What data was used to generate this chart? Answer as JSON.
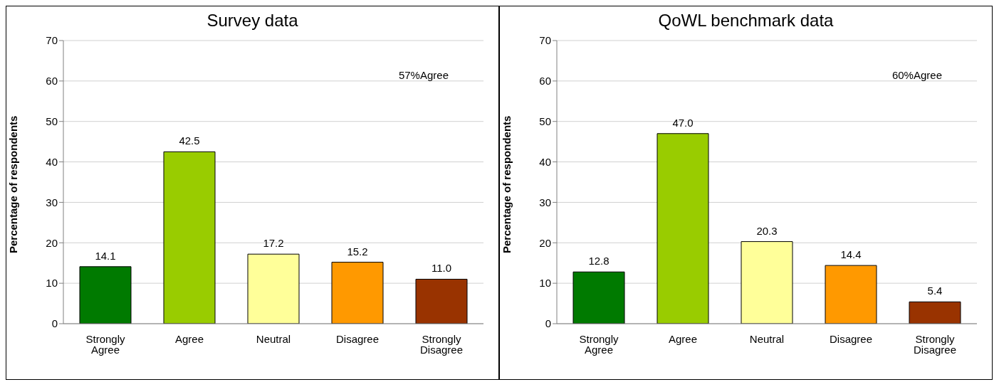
{
  "chart_data": [
    {
      "type": "bar",
      "title": "Survey data",
      "ylabel": "Percentage of respondents",
      "categories": [
        "Strongly Agree",
        "Agree",
        "Neutral",
        "Disagree",
        "Strongly Disagree"
      ],
      "values": [
        14.1,
        42.5,
        17.2,
        15.2,
        11.0
      ],
      "value_labels": [
        "14.1",
        "42.5",
        "17.2",
        "15.2",
        "11.0"
      ],
      "colors": [
        "#007a00",
        "#99cc00",
        "#ffff99",
        "#ff9900",
        "#993300"
      ],
      "ylim": [
        0,
        70
      ],
      "yticks": [
        0,
        10,
        20,
        30,
        40,
        50,
        60,
        70
      ],
      "grid": "y",
      "legend": false,
      "annotations": [
        "57%Agree"
      ]
    },
    {
      "type": "bar",
      "title": "QoWL benchmark data",
      "ylabel": "Percentage of respondents",
      "categories": [
        "Strongly Agree",
        "Agree",
        "Neutral",
        "Disagree",
        "Strongly Disagree"
      ],
      "values": [
        12.8,
        47.0,
        20.3,
        14.4,
        5.4
      ],
      "value_labels": [
        "12.8",
        "47.0",
        "20.3",
        "14.4",
        "5.4"
      ],
      "colors": [
        "#007a00",
        "#99cc00",
        "#ffff99",
        "#ff9900",
        "#993300"
      ],
      "ylim": [
        0,
        70
      ],
      "yticks": [
        0,
        10,
        20,
        30,
        40,
        50,
        60,
        70
      ],
      "grid": "y",
      "legend": false,
      "annotations": [
        "60%Agree"
      ]
    }
  ]
}
